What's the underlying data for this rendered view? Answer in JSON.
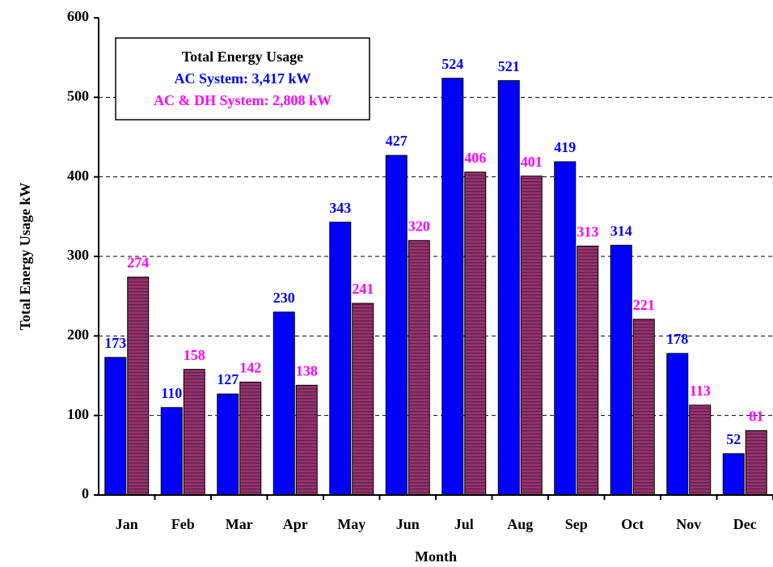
{
  "chart_data": {
    "type": "bar",
    "x_label": "Month",
    "y_label": "Total Energy Usage   kW",
    "legend_title": "Total Energy Usage",
    "categories": [
      "Jan",
      "Feb",
      "Mar",
      "Apr",
      "May",
      "Jun",
      "Jul",
      "Aug",
      "Sep",
      "Oct",
      "Nov",
      "Dec"
    ],
    "series": [
      {
        "name": "AC System: 3,417 kW",
        "color": "#0000ff",
        "label_color": "#0000ff",
        "values": [
          173,
          110,
          127,
          230,
          343,
          427,
          524,
          521,
          419,
          314,
          178,
          52
        ]
      },
      {
        "name": "AC & DH System: 2,808 kW",
        "color": "#993366",
        "label_color": "#ff00ff",
        "hatch": true,
        "values": [
          274,
          158,
          142,
          138,
          241,
          320,
          406,
          401,
          313,
          221,
          113,
          81
        ]
      }
    ],
    "ylim": [
      0,
      600
    ],
    "yticks": [
      0,
      100,
      200,
      300,
      400,
      500,
      600
    ],
    "grid": true
  }
}
